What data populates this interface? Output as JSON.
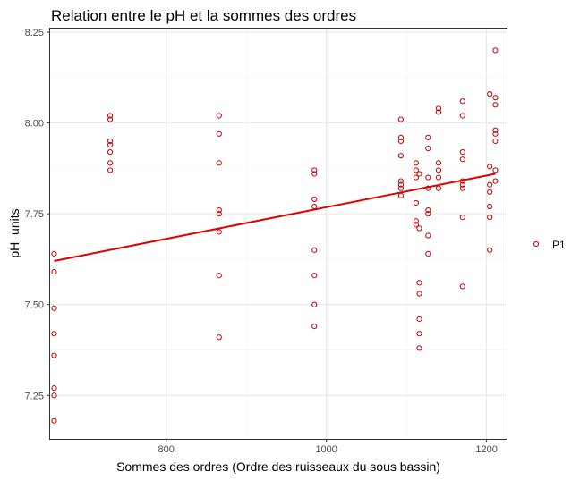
{
  "chart_data": {
    "type": "scatter",
    "title": "Relation entre le pH et la sommes des ordres",
    "xlabel": "Sommes des ordres (Ordre des ruisseaux du sous bassin)",
    "ylabel": "pH_units",
    "xlim": [
      655,
      1225
    ],
    "ylim": [
      7.13,
      8.26
    ],
    "x_ticks": [
      800,
      1000,
      1200
    ],
    "x_tick_labels": [
      "800",
      "1000",
      "1200"
    ],
    "y_ticks": [
      7.25,
      7.5,
      7.75,
      8.0,
      8.25
    ],
    "y_tick_labels": [
      "7.25",
      "7.50",
      "7.75",
      "8.00",
      "8.25"
    ],
    "grid": true,
    "legend_position": "right",
    "point_color": "#cc0000",
    "line_color": "#e00000",
    "series": [
      {
        "name": "P1",
        "points": [
          [
            660,
            7.64
          ],
          [
            660,
            7.59
          ],
          [
            660,
            7.49
          ],
          [
            660,
            7.42
          ],
          [
            660,
            7.36
          ],
          [
            660,
            7.27
          ],
          [
            660,
            7.25
          ],
          [
            660,
            7.18
          ],
          [
            730,
            8.02
          ],
          [
            730,
            8.01
          ],
          [
            730,
            7.95
          ],
          [
            730,
            7.94
          ],
          [
            730,
            7.92
          ],
          [
            730,
            7.89
          ],
          [
            730,
            7.87
          ],
          [
            866,
            8.02
          ],
          [
            866,
            7.97
          ],
          [
            866,
            7.89
          ],
          [
            866,
            7.76
          ],
          [
            866,
            7.75
          ],
          [
            866,
            7.7
          ],
          [
            866,
            7.58
          ],
          [
            866,
            7.41
          ],
          [
            985,
            7.87
          ],
          [
            985,
            7.86
          ],
          [
            985,
            7.79
          ],
          [
            985,
            7.77
          ],
          [
            985,
            7.65
          ],
          [
            985,
            7.58
          ],
          [
            985,
            7.5
          ],
          [
            985,
            7.44
          ],
          [
            1093,
            8.01
          ],
          [
            1093,
            7.96
          ],
          [
            1093,
            7.95
          ],
          [
            1093,
            7.91
          ],
          [
            1093,
            7.84
          ],
          [
            1093,
            7.83
          ],
          [
            1093,
            7.82
          ],
          [
            1093,
            7.8
          ],
          [
            1112,
            7.89
          ],
          [
            1112,
            7.87
          ],
          [
            1112,
            7.85
          ],
          [
            1112,
            7.78
          ],
          [
            1112,
            7.73
          ],
          [
            1112,
            7.72
          ],
          [
            1116,
            7.86
          ],
          [
            1116,
            7.71
          ],
          [
            1116,
            7.56
          ],
          [
            1116,
            7.53
          ],
          [
            1116,
            7.46
          ],
          [
            1116,
            7.42
          ],
          [
            1116,
            7.38
          ],
          [
            1127,
            7.96
          ],
          [
            1127,
            7.93
          ],
          [
            1127,
            7.85
          ],
          [
            1127,
            7.82
          ],
          [
            1127,
            7.76
          ],
          [
            1127,
            7.75
          ],
          [
            1127,
            7.69
          ],
          [
            1127,
            7.64
          ],
          [
            1140,
            8.04
          ],
          [
            1140,
            8.03
          ],
          [
            1140,
            7.89
          ],
          [
            1140,
            7.87
          ],
          [
            1140,
            7.85
          ],
          [
            1140,
            7.82
          ],
          [
            1170,
            8.06
          ],
          [
            1170,
            8.02
          ],
          [
            1170,
            7.92
          ],
          [
            1170,
            7.9
          ],
          [
            1170,
            7.84
          ],
          [
            1170,
            7.83
          ],
          [
            1170,
            7.82
          ],
          [
            1170,
            7.74
          ],
          [
            1170,
            7.55
          ],
          [
            1204,
            8.08
          ],
          [
            1204,
            7.88
          ],
          [
            1204,
            7.83
          ],
          [
            1204,
            7.81
          ],
          [
            1204,
            7.77
          ],
          [
            1204,
            7.74
          ],
          [
            1204,
            7.65
          ],
          [
            1211,
            8.2
          ],
          [
            1211,
            8.07
          ],
          [
            1211,
            8.05
          ],
          [
            1211,
            7.98
          ],
          [
            1211,
            7.97
          ],
          [
            1211,
            7.95
          ],
          [
            1211,
            7.87
          ],
          [
            1211,
            7.84
          ]
        ]
      }
    ],
    "trend_line": {
      "x": [
        660,
        1211
      ],
      "y": [
        7.62,
        7.86
      ]
    }
  }
}
